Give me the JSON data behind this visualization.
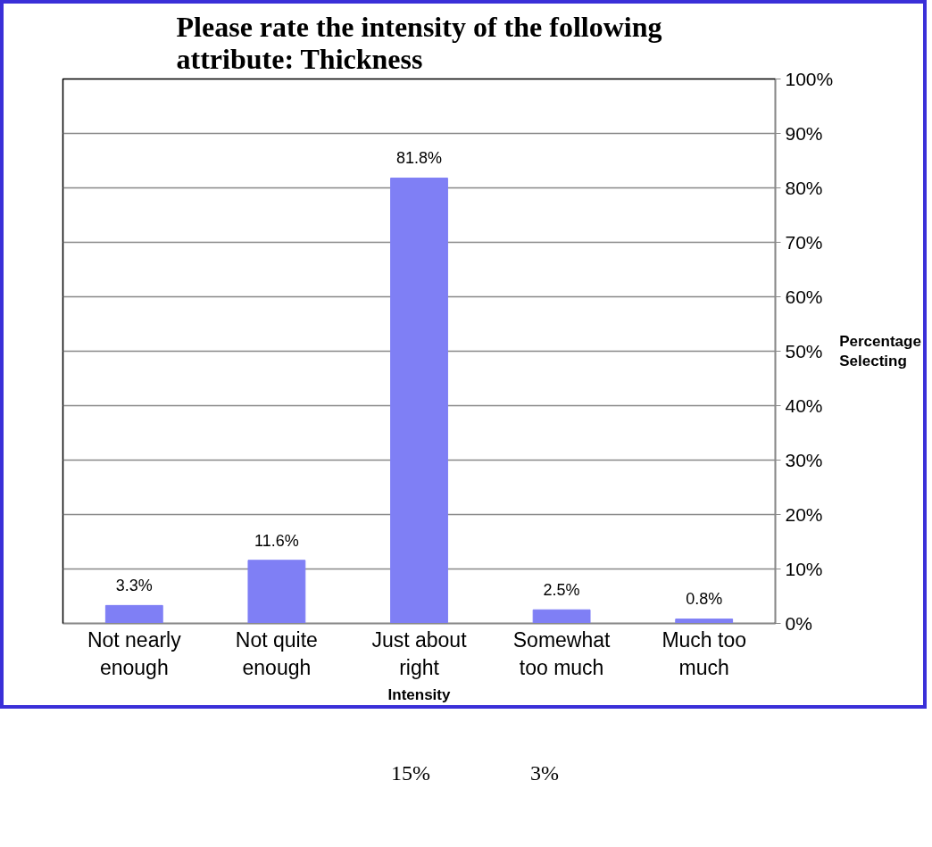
{
  "chart_data": {
    "type": "bar",
    "title": "Please rate the intensity of the following attribute: Thickness",
    "xlabel": "Intensity",
    "ylabel": "Percentage Selecting",
    "categories": [
      "Not nearly enough",
      "Not quite enough",
      "Just about right",
      "Somewhat too much",
      "Much too much"
    ],
    "values": [
      3.3,
      11.6,
      81.8,
      2.5,
      0.8
    ],
    "value_labels": [
      "3.3%",
      "11.6%",
      "81.8%",
      "2.5%",
      "0.8%"
    ],
    "color": "#7f7ff5",
    "ylim": [
      0,
      100
    ],
    "yticks": [
      {
        "value": 0,
        "label": "0%"
      },
      {
        "value": 10,
        "label": "10%"
      },
      {
        "value": 20,
        "label": "20%"
      },
      {
        "value": 30,
        "label": "30%"
      },
      {
        "value": 40,
        "label": "40%"
      },
      {
        "value": 50,
        "label": "50%"
      },
      {
        "value": 60,
        "label": "60%"
      },
      {
        "value": 70,
        "label": "70%"
      },
      {
        "value": 80,
        "label": "80%"
      },
      {
        "value": 90,
        "label": "90%"
      },
      {
        "value": 100,
        "label": "100%"
      }
    ],
    "grid": "y",
    "annotations": [
      "15%",
      "3%"
    ]
  }
}
